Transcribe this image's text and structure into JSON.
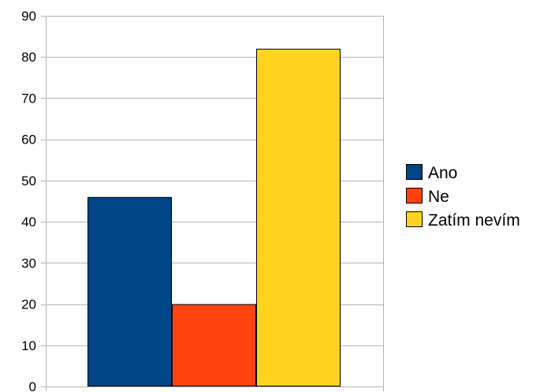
{
  "chart_data": {
    "type": "bar",
    "title": "",
    "xlabel": "",
    "ylabel": "",
    "ylim": [
      0,
      90
    ],
    "yticks": [
      0,
      10,
      20,
      30,
      40,
      50,
      60,
      70,
      80,
      90
    ],
    "grid": true,
    "legend_position": "right",
    "categories": [
      ""
    ],
    "series": [
      {
        "name": "Ano",
        "values": [
          46
        ],
        "color": "#004586"
      },
      {
        "name": "Ne",
        "values": [
          20
        ],
        "color": "#ff420e"
      },
      {
        "name": "Zatím nevím",
        "values": [
          82
        ],
        "color": "#ffd320"
      }
    ]
  }
}
